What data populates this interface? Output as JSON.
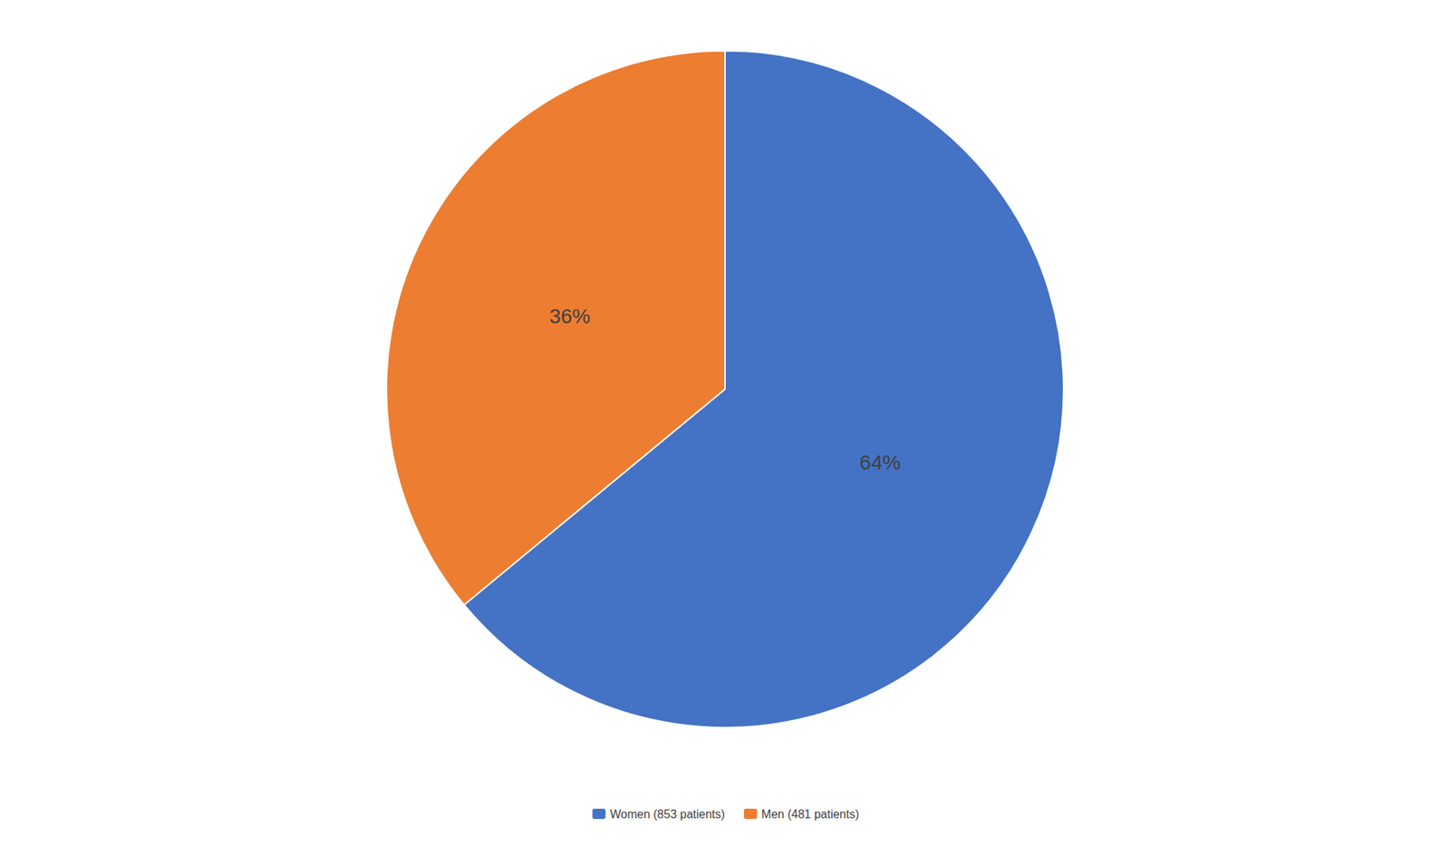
{
  "chart_data": {
    "type": "pie",
    "categories": [
      "Women (853 patients)",
      "Men (481 patients)"
    ],
    "values": [
      64,
      36
    ],
    "value_labels": [
      "64%",
      "36%"
    ],
    "colors": [
      "#4472C4",
      "#ED7D31"
    ],
    "data_labels": true,
    "legend": "bottom"
  }
}
